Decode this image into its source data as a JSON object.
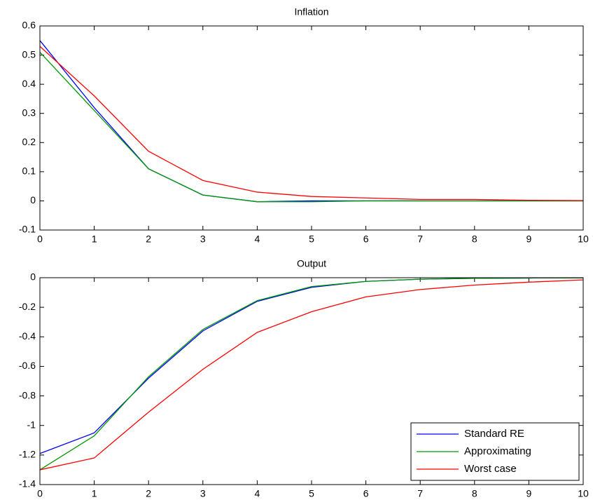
{
  "chart_data": [
    {
      "type": "line",
      "title": "Inflation",
      "x": [
        0,
        1,
        2,
        3,
        4,
        5,
        6,
        7,
        8,
        9,
        10
      ],
      "series": [
        {
          "name": "Standard RE",
          "color": "#0000ff",
          "values": [
            0.55,
            0.32,
            0.11,
            0.02,
            -0.003,
            0,
            0,
            0,
            0,
            0,
            0
          ]
        },
        {
          "name": "Approximating",
          "color": "#009900",
          "values": [
            0.51,
            0.31,
            0.11,
            0.02,
            -0.003,
            -0.003,
            0,
            0,
            0,
            0,
            0
          ]
        },
        {
          "name": "Worst case",
          "color": "#ff0000",
          "values": [
            0.53,
            0.36,
            0.17,
            0.07,
            0.03,
            0.015,
            0.01,
            0.005,
            0.005,
            0.002,
            0.001
          ]
        }
      ],
      "xlim": [
        0,
        10
      ],
      "xticks": [
        0,
        1,
        2,
        3,
        4,
        5,
        6,
        7,
        8,
        9,
        10
      ],
      "ylim": [
        -0.1,
        0.6
      ],
      "yticks": [
        -0.1,
        0,
        0.1,
        0.2,
        0.3,
        0.4,
        0.5,
        0.6
      ]
    },
    {
      "type": "line",
      "title": "Output",
      "x": [
        0,
        1,
        2,
        3,
        4,
        5,
        6,
        7,
        8,
        9,
        10
      ],
      "series": [
        {
          "name": "Standard RE",
          "color": "#0000ff",
          "values": [
            -1.19,
            -1.05,
            -0.68,
            -0.36,
            -0.16,
            -0.065,
            -0.025,
            -0.01,
            -0.004,
            -0.002,
            -0.001
          ]
        },
        {
          "name": "Approximating",
          "color": "#009900",
          "values": [
            -1.3,
            -1.07,
            -0.67,
            -0.35,
            -0.155,
            -0.06,
            -0.025,
            -0.01,
            -0.004,
            -0.002,
            -0.001
          ]
        },
        {
          "name": "Worst case",
          "color": "#ff0000",
          "values": [
            -1.3,
            -1.22,
            -0.91,
            -0.62,
            -0.37,
            -0.23,
            -0.13,
            -0.08,
            -0.05,
            -0.03,
            -0.015
          ]
        }
      ],
      "xlim": [
        0,
        10
      ],
      "xticks": [
        0,
        1,
        2,
        3,
        4,
        5,
        6,
        7,
        8,
        9,
        10
      ],
      "ylim": [
        -1.4,
        0
      ],
      "yticks": [
        -1.4,
        -1.2,
        -1,
        -0.8,
        -0.6,
        -0.4,
        -0.2,
        0
      ],
      "legend": "lower right"
    }
  ]
}
